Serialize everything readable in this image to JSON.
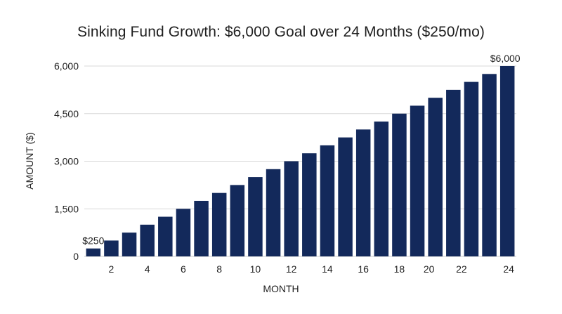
{
  "chart_data": {
    "type": "bar",
    "title": "Sinking Fund Growth: $6,000 Goal over 24 Months ($250/mo)",
    "xlabel": "MONTH",
    "ylabel": "AMOUNT ($)",
    "categories": [
      1,
      2,
      3,
      4,
      5,
      6,
      7,
      8,
      9,
      10,
      11,
      12,
      13,
      14,
      15,
      16,
      17,
      18,
      19,
      20,
      21,
      22,
      23,
      24
    ],
    "values": [
      250,
      500,
      750,
      1000,
      1250,
      1500,
      1750,
      2000,
      2250,
      2500,
      2750,
      3000,
      3250,
      3500,
      3750,
      4000,
      4250,
      4500,
      4750,
      5000,
      5250,
      5500,
      5750,
      6000
    ],
    "ylim": [
      0,
      6000
    ],
    "y_ticks": [
      0,
      1500,
      3000,
      4500,
      6000
    ],
    "y_tick_labels": [
      "0",
      "1,500",
      "3,000",
      "4,500",
      "6,000"
    ],
    "x_tick_labels": [
      "2",
      "4",
      "6",
      "8",
      "10",
      "12",
      "14",
      "16",
      "18",
      "20",
      "22",
      "24"
    ],
    "annotations": [
      {
        "category": 1,
        "text": "$250"
      },
      {
        "category": 24,
        "text": "$6,000"
      }
    ],
    "bar_color": "#13295b",
    "grid": true
  }
}
